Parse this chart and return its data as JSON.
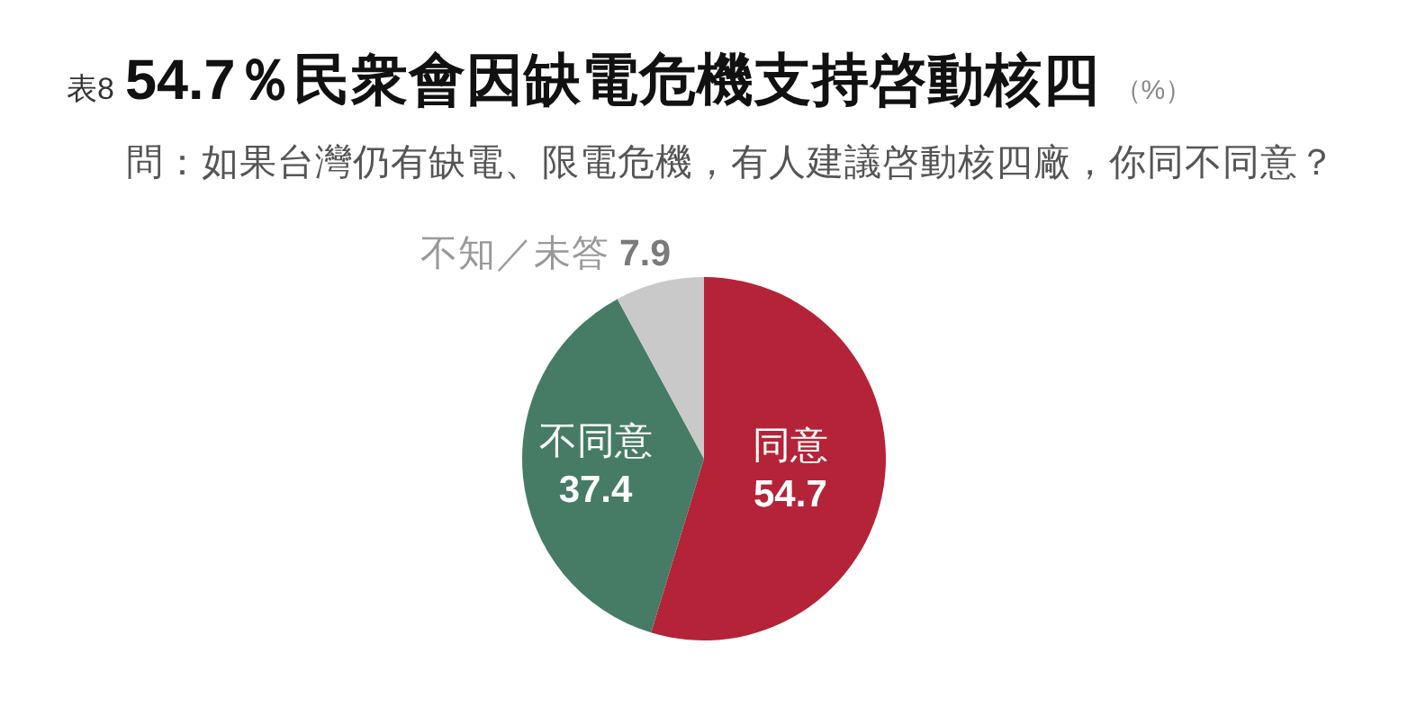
{
  "chart_data": {
    "type": "pie",
    "title": "54.7％民衆會因缺電危機支持啓動核四",
    "subtitle": "問：如果台灣仍有缺電、限電危機，有人建議啓動核四廠，你同不同意？",
    "annotations": [
      "表8",
      "（%）"
    ],
    "categories": [
      "同意",
      "不同意",
      "不知／未答"
    ],
    "values": [
      54.7,
      37.4,
      7.9
    ],
    "colors": [
      "#b52338",
      "#467b66",
      "#c9c9c9"
    ],
    "data_labels": true
  }
}
